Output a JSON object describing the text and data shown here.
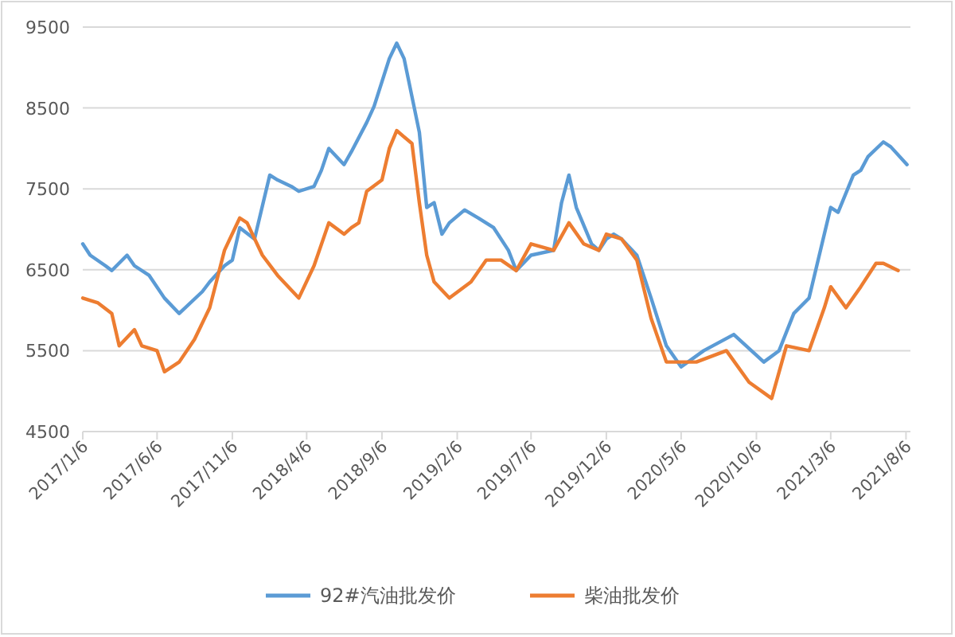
{
  "chart_data": {
    "type": "line",
    "x": [
      "2017-01-06",
      "2017-01-21",
      "2017-02-21",
      "2017-03-06",
      "2017-04-06",
      "2017-04-21",
      "2017-05-21",
      "2017-06-21",
      "2017-07-21",
      "2017-09-06",
      "2017-09-21",
      "2017-10-21",
      "2017-11-06",
      "2017-11-21",
      "2017-12-21",
      "2018-01-21",
      "2018-02-06",
      "2018-03-06",
      "2018-03-21",
      "2018-04-21",
      "2018-05-06",
      "2018-05-21",
      "2018-06-21",
      "2018-07-06",
      "2018-08-06",
      "2018-08-21",
      "2018-09-21",
      "2018-10-06",
      "2018-10-21",
      "2018-11-21",
      "2018-12-06",
      "2018-12-21",
      "2019-01-06",
      "2019-01-21",
      "2019-02-21",
      "2019-03-21",
      "2019-04-21",
      "2019-05-21",
      "2019-06-06",
      "2019-07-06",
      "2019-08-21",
      "2019-09-06",
      "2019-09-21",
      "2019-10-06",
      "2019-11-06",
      "2019-11-21",
      "2019-12-06",
      "2019-12-21",
      "2020-01-06",
      "2020-02-06",
      "2020-03-06",
      "2020-04-06",
      "2020-05-06",
      "2020-06-21",
      "2020-08-21",
      "2020-10-21",
      "2020-11-21",
      "2020-12-21",
      "2021-01-21",
      "2021-02-21",
      "2021-03-06",
      "2021-03-21",
      "2021-04-21",
      "2021-05-06",
      "2021-05-21",
      "2021-06-21",
      "2021-07-06",
      "2021-08-08"
    ],
    "series": [
      {
        "name": "92#汽油批发价",
        "color": "#5b9bd5",
        "values": [
          6820,
          6680,
          6550,
          6490,
          6680,
          6550,
          6430,
          6150,
          5960,
          6230,
          6350,
          6550,
          6620,
          7020,
          6880,
          7670,
          7610,
          7530,
          7470,
          7530,
          7730,
          8000,
          7800,
          7960,
          8320,
          8520,
          9110,
          9300,
          9110,
          8200,
          7270,
          7330,
          6940,
          7080,
          7240,
          7140,
          7020,
          6740,
          6490,
          6680,
          6740,
          7330,
          7670,
          7270,
          6820,
          6740,
          6880,
          6940,
          6880,
          6680,
          6150,
          5560,
          5300,
          5500,
          5700,
          5360,
          5500,
          5960,
          6150,
          6940,
          7270,
          7210,
          7670,
          7730,
          7900,
          8080,
          8020,
          7800
        ]
      },
      {
        "name": "柴油批发价",
        "color": "#ed7d31",
        "x": [
          "2017-01-06",
          "2017-02-06",
          "2017-03-06",
          "2017-03-21",
          "2017-04-21",
          "2017-05-06",
          "2017-06-06",
          "2017-06-21",
          "2017-07-21",
          "2017-08-21",
          "2017-09-21",
          "2017-10-21",
          "2017-11-21",
          "2017-12-06",
          "2018-01-06",
          "2018-02-06",
          "2018-03-21",
          "2018-04-21",
          "2018-05-21",
          "2018-06-21",
          "2018-07-06",
          "2018-07-21",
          "2018-08-06",
          "2018-09-06",
          "2018-09-21",
          "2018-10-06",
          "2018-11-06",
          "2018-11-21",
          "2018-12-06",
          "2018-12-21",
          "2019-01-21",
          "2019-03-06",
          "2019-04-06",
          "2019-05-06",
          "2019-06-06",
          "2019-07-06",
          "2019-08-21",
          "2019-09-21",
          "2019-10-21",
          "2019-11-21",
          "2019-12-06",
          "2020-01-06",
          "2020-02-06",
          "2020-03-06",
          "2020-04-06",
          "2020-05-06",
          "2020-06-06",
          "2020-08-06",
          "2020-09-21",
          "2020-11-06",
          "2020-12-06",
          "2021-01-21",
          "2021-02-21",
          "2021-03-06",
          "2021-04-06",
          "2021-05-06",
          "2021-06-06",
          "2021-06-21",
          "2021-07-21"
        ],
        "values": [
          6150,
          6090,
          5960,
          5560,
          5760,
          5560,
          5500,
          5240,
          5360,
          5640,
          6030,
          6740,
          7140,
          7080,
          6680,
          6430,
          6150,
          6550,
          7080,
          6940,
          7020,
          7080,
          7470,
          7610,
          8000,
          8220,
          8060,
          7330,
          6680,
          6350,
          6150,
          6350,
          6620,
          6620,
          6490,
          6820,
          6740,
          7080,
          6820,
          6740,
          6940,
          6880,
          6620,
          5900,
          5360,
          5360,
          5360,
          5500,
          5110,
          4910,
          5560,
          5500,
          6030,
          6290,
          6030,
          6290,
          6580,
          6580,
          6490
        ]
      }
    ],
    "xlim": [
      "2017-01-06",
      "2021-08-15"
    ],
    "xticks": [
      {
        "value": "2017-01-06",
        "label": "2017/1/6"
      },
      {
        "value": "2017-06-06",
        "label": "2017/6/6"
      },
      {
        "value": "2017-11-06",
        "label": "2017/11/6"
      },
      {
        "value": "2018-04-06",
        "label": "2018/4/6"
      },
      {
        "value": "2018-09-06",
        "label": "2018/9/6"
      },
      {
        "value": "2019-02-06",
        "label": "2019/2/6"
      },
      {
        "value": "2019-07-06",
        "label": "2019/7/6"
      },
      {
        "value": "2019-12-06",
        "label": "2019/12/6"
      },
      {
        "value": "2020-05-06",
        "label": "2020/5/6"
      },
      {
        "value": "2020-10-06",
        "label": "2020/10/6"
      },
      {
        "value": "2021-03-06",
        "label": "2021/3/6"
      },
      {
        "value": "2021-08-06",
        "label": "2021/8/6"
      }
    ],
    "ylim": [
      4500,
      9500
    ],
    "yticks": [
      4500,
      5500,
      6500,
      7500,
      8500,
      9500
    ],
    "grid": "y",
    "legend": "bottom",
    "marker": "none",
    "line_style": "solid"
  }
}
